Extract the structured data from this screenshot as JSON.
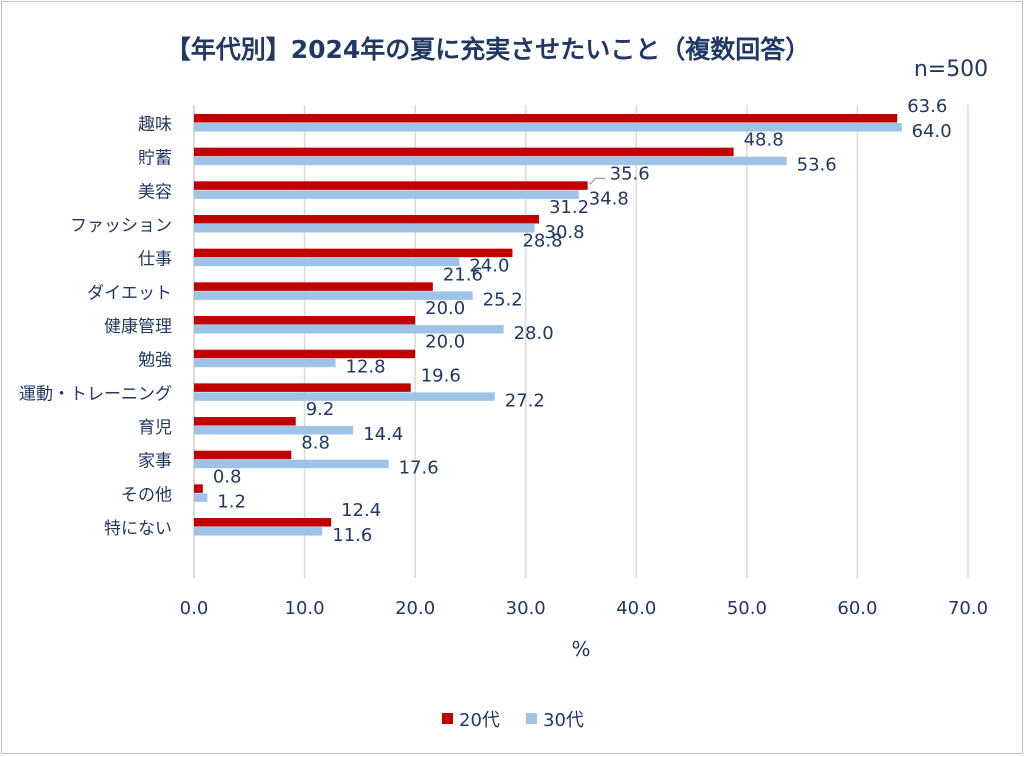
{
  "chart_data": {
    "type": "bar",
    "orientation": "horizontal",
    "title": "【年代別】2024年の夏に充実させたいこと（複数回答）",
    "subtitle": "n=500",
    "xlabel": "%",
    "ylabel": "",
    "xlim": [
      0,
      70
    ],
    "xticks": [
      "0.0",
      "10.0",
      "20.0",
      "30.0",
      "40.0",
      "50.0",
      "60.0",
      "70.0"
    ],
    "grid": true,
    "legend_position": "bottom",
    "categories": [
      "趣味",
      "貯蓄",
      "美容",
      "ファッション",
      "仕事",
      "ダイエット",
      "健康管理",
      "勉強",
      "運動・トレーニング",
      "育児",
      "家事",
      "その他",
      "特にない"
    ],
    "series": [
      {
        "name": "20代",
        "color": "#c00000",
        "values": [
          63.6,
          48.8,
          35.6,
          31.2,
          28.8,
          21.6,
          20.0,
          20.0,
          19.6,
          9.2,
          8.8,
          0.8,
          12.4
        ]
      },
      {
        "name": "30代",
        "color": "#9dc3e6",
        "values": [
          64.0,
          53.6,
          34.8,
          30.8,
          24.0,
          25.2,
          28.0,
          12.8,
          27.2,
          14.4,
          17.6,
          1.2,
          11.6
        ]
      }
    ]
  }
}
